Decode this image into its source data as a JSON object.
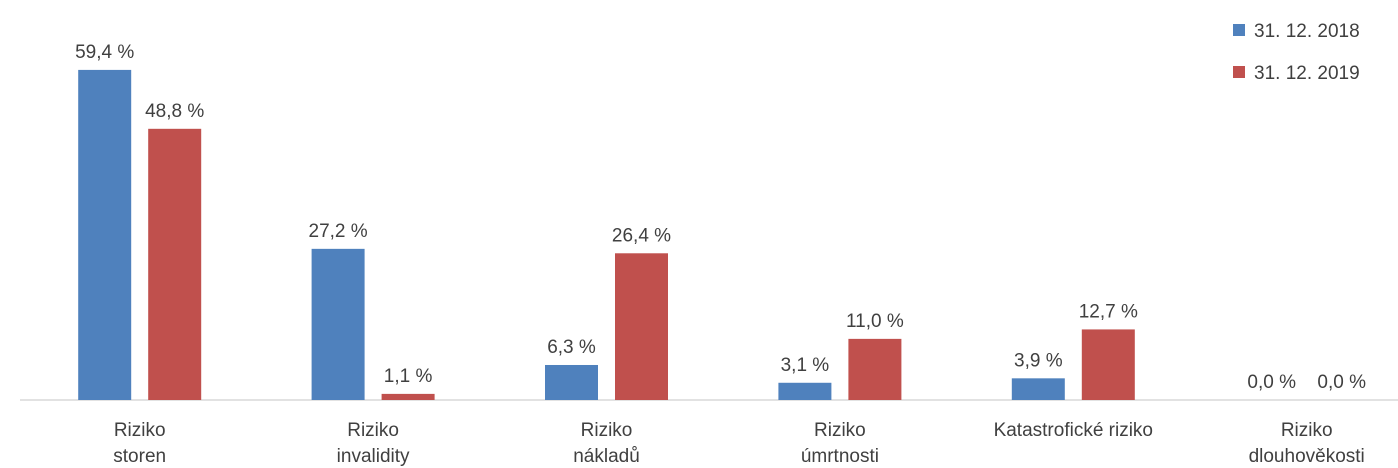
{
  "chart_data": {
    "type": "bar",
    "categories": [
      "Riziko\nstoren",
      "Riziko\ninvalidity",
      "Riziko\nnákladů",
      "Riziko\númrtnosti",
      "Katastrofické riziko",
      "Riziko\ndlouhověkosti"
    ],
    "series": [
      {
        "name": "31. 12. 2018",
        "color": "#4f81bd",
        "values": [
          59.4,
          27.2,
          6.3,
          3.1,
          3.9,
          0.0
        ],
        "value_labels": [
          "59,4 %",
          "27,2 %",
          "6,3 %",
          "3,1 %",
          "3,9 %",
          "0,0 %"
        ]
      },
      {
        "name": "31. 12. 2019",
        "color": "#c0504d",
        "values": [
          48.8,
          1.1,
          26.4,
          11.0,
          12.7,
          0.0
        ],
        "value_labels": [
          "48,8 %",
          "1,1 %",
          "26,4 %",
          "11,0 %",
          "12,7 %",
          "0,0 %"
        ]
      }
    ],
    "ylim": [
      0,
      70
    ],
    "legend": "top-right"
  }
}
